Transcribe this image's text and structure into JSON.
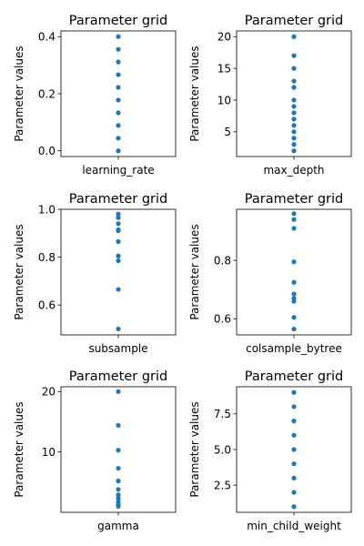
{
  "colors": {
    "points": "#1f77b4",
    "axes": "#000000",
    "background": "#ffffff"
  },
  "chart_data": [
    {
      "type": "scatter",
      "title": "Parameter grid",
      "ylabel": "Parameter values",
      "xticks": [
        "learning_rate"
      ],
      "ylim": [
        -0.02,
        0.42
      ],
      "yticks": [
        0.0,
        0.2,
        0.4
      ],
      "ytick_labels": [
        "0.0",
        "0.2",
        "0.4"
      ],
      "values": [
        0.0,
        0.0444,
        0.0889,
        0.1333,
        0.1778,
        0.2222,
        0.2667,
        0.3111,
        0.3556,
        0.4
      ]
    },
    {
      "type": "scatter",
      "title": "Parameter grid",
      "ylabel": "Parameter values",
      "xticks": [
        "max_depth"
      ],
      "ylim": [
        1.1,
        20.9
      ],
      "yticks": [
        5,
        10,
        15,
        20
      ],
      "ytick_labels": [
        "5",
        "10",
        "15",
        "20"
      ],
      "values": [
        2,
        3,
        4,
        5,
        6,
        7,
        8,
        9,
        10,
        12,
        13,
        15,
        17,
        20
      ]
    },
    {
      "type": "scatter",
      "title": "Parameter grid",
      "ylabel": "Parameter values",
      "xticks": [
        "subsample"
      ],
      "ylim": [
        0.475,
        1.0
      ],
      "yticks": [
        0.6,
        0.8,
        1.0
      ],
      "ytick_labels": [
        "0.6",
        "0.8",
        "1.0"
      ],
      "values": [
        0.5,
        0.665,
        0.785,
        0.805,
        0.865,
        0.91,
        0.915,
        0.94,
        0.965,
        0.98
      ]
    },
    {
      "type": "scatter",
      "title": "Parameter grid",
      "ylabel": "Parameter values",
      "xticks": [
        "colsample_bytree"
      ],
      "ylim": [
        0.545,
        0.975
      ],
      "yticks": [
        0.6,
        0.8
      ],
      "ytick_labels": [
        "0.6",
        "0.8"
      ],
      "values": [
        0.565,
        0.605,
        0.66,
        0.67,
        0.685,
        0.725,
        0.795,
        0.91,
        0.94,
        0.96
      ]
    },
    {
      "type": "scatter",
      "title": "Parameter grid",
      "ylabel": "Parameter values",
      "xticks": [
        "gamma"
      ],
      "ylim": [
        0.0,
        20.8
      ],
      "yticks": [
        10,
        20
      ],
      "ytick_labels": [
        "10",
        "20"
      ],
      "values": [
        1.0,
        1.3,
        1.7,
        2.3,
        2.9,
        3.8,
        5.2,
        7.3,
        10.3,
        14.4,
        20.0
      ]
    },
    {
      "type": "scatter",
      "title": "Parameter grid",
      "ylabel": "Parameter values",
      "xticks": [
        "min_child_weight"
      ],
      "ylim": [
        0.6,
        9.4
      ],
      "yticks": [
        2.5,
        5.0,
        7.5
      ],
      "ytick_labels": [
        "2.5",
        "5.0",
        "7.5"
      ],
      "values": [
        1,
        2,
        3,
        4,
        5,
        6,
        7,
        8,
        9
      ]
    }
  ]
}
